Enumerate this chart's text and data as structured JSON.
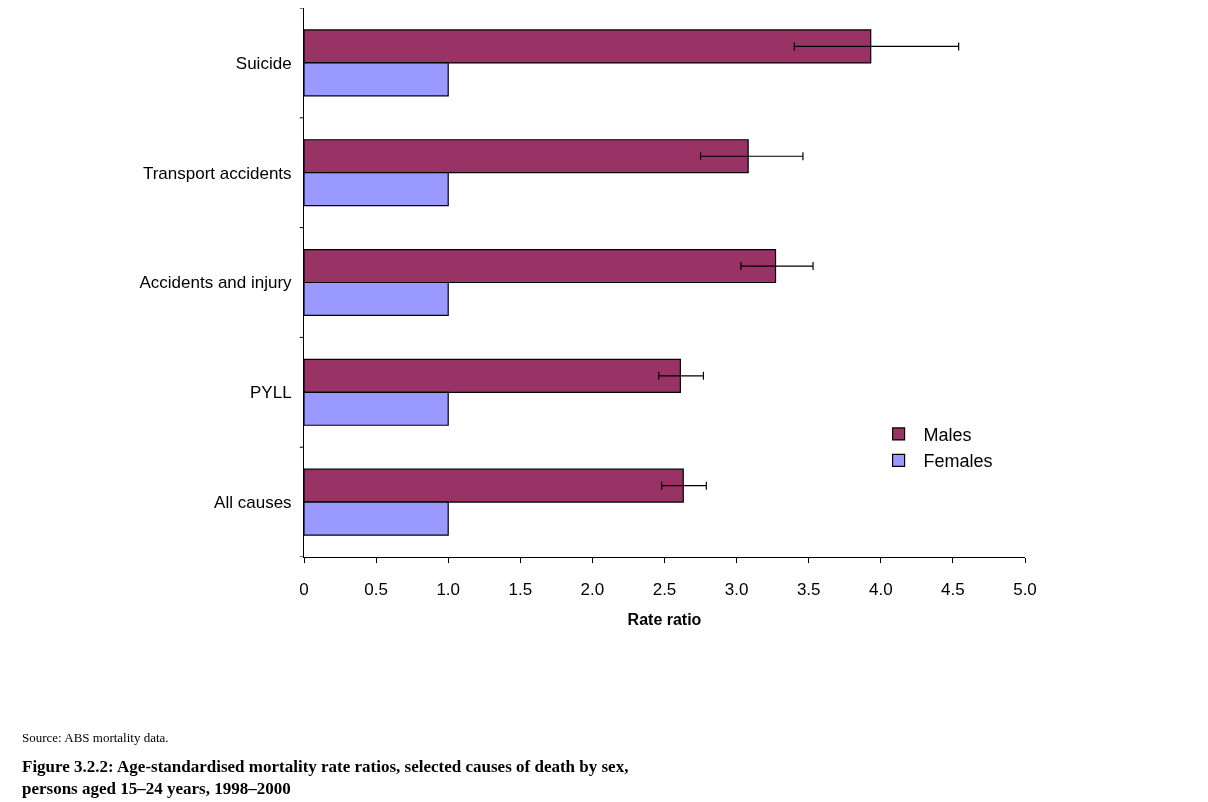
{
  "chart_data": {
    "type": "bar",
    "orientation": "horizontal",
    "title": "Figure 3.2.2: Age-standardised mortality rate ratios, selected causes of death by sex, persons aged 15–24 years, 1998–2000",
    "xlabel": "Rate ratio",
    "annotations": [
      "Source: ABS mortality data."
    ],
    "categories": [
      "Suicide",
      "Transport accidents",
      "Accidents and injury",
      "PYLL",
      "All causes"
    ],
    "series": [
      {
        "name": "Males",
        "color": "#993366",
        "values": [
          3.93,
          3.08,
          3.27,
          2.61,
          2.63
        ],
        "errors": [
          [
            3.4,
            4.54
          ],
          [
            2.75,
            3.46
          ],
          [
            3.03,
            3.53
          ],
          [
            2.46,
            2.77
          ],
          [
            2.48,
            2.79
          ]
        ]
      },
      {
        "name": "Females",
        "color": "#9999ff",
        "values": [
          1.0,
          1.0,
          1.0,
          1.0,
          1.0
        ]
      }
    ],
    "xlim": [
      0,
      5
    ],
    "xticks": [
      0,
      0.5,
      {
        "value": 1,
        "label": "1.0"
      },
      1.5,
      {
        "value": 2,
        "label": "2.0"
      },
      2.5,
      {
        "value": 3,
        "label": "3.0"
      },
      3.5,
      {
        "value": 4,
        "label": "4.0"
      },
      4.5,
      {
        "value": 5,
        "label": "5.0"
      }
    ],
    "legend": "right"
  }
}
